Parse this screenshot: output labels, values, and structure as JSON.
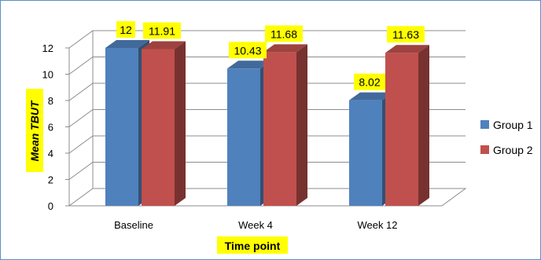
{
  "chart_data": {
    "type": "bar",
    "categories": [
      "Baseline",
      "Week 4",
      "Week 12"
    ],
    "series": [
      {
        "name": "Group 1",
        "values": [
          12,
          10.43,
          8.02
        ],
        "labels": [
          "12",
          "10.43",
          "8.02"
        ]
      },
      {
        "name": "Group 2",
        "values": [
          11.91,
          11.68,
          11.63
        ],
        "labels": [
          "11.91",
          "11.68",
          "11.63"
        ]
      }
    ],
    "title": "",
    "xlabel": "Time point",
    "ylabel": "Mean TBUT",
    "ylim": [
      0,
      12
    ],
    "yticks": [
      "0",
      "2",
      "4",
      "6",
      "8",
      "10",
      "12"
    ],
    "grid": true,
    "legend": "right",
    "colors": {
      "series": [
        "#4f81bd",
        "#c0504d"
      ],
      "label_background": "#ffff00",
      "gridline": "#8c8c8c",
      "frame_border": "#5b8fc7"
    }
  }
}
